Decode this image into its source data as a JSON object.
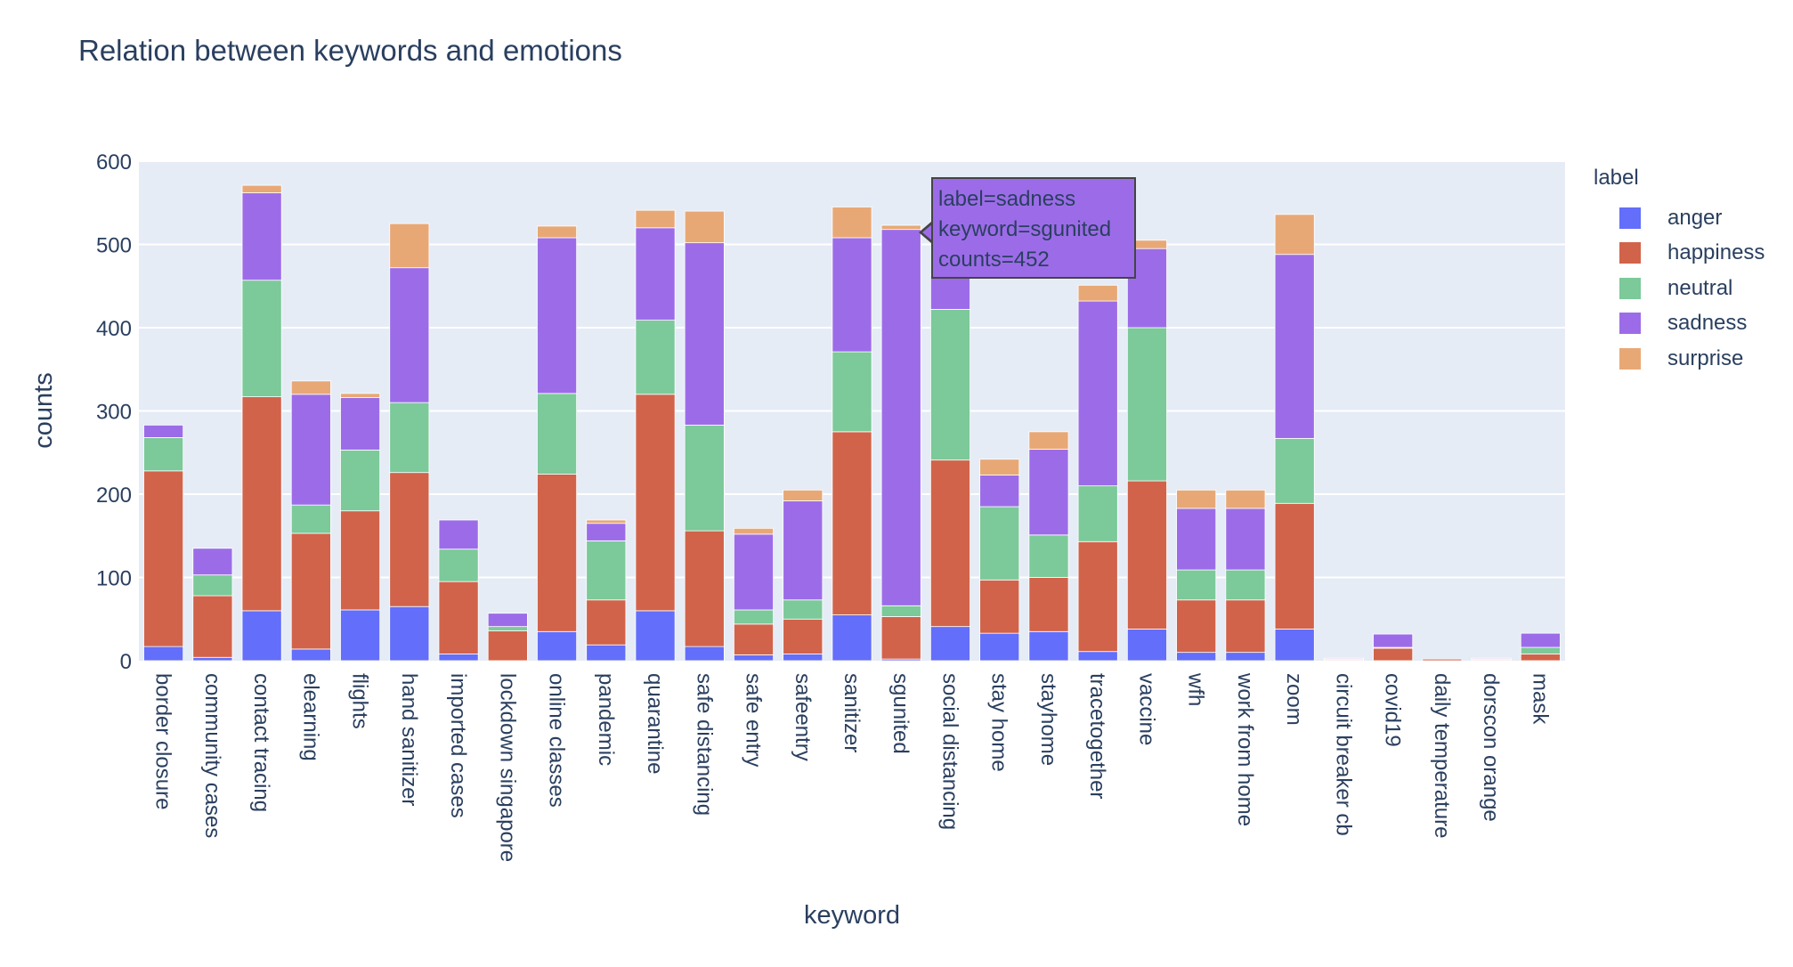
{
  "chart_data": {
    "type": "bar",
    "barmode": "stack",
    "title": "Relation between keywords and emotions",
    "xlabel": "keyword",
    "ylabel": "counts",
    "ylim": [
      0,
      600
    ],
    "yticks": [
      0,
      100,
      200,
      300,
      400,
      500,
      600
    ],
    "grid": true,
    "legend_title": "label",
    "legend_position": "right",
    "categories": [
      "border closure",
      "community cases",
      "contact tracing",
      "elearning",
      "flights",
      "hand sanitizer",
      "imported cases",
      "lockdown singapore",
      "online classes",
      "pandemic",
      "quarantine",
      "safe distancing",
      "safe entry",
      "safeentry",
      "sanitizer",
      "sgunited",
      "social distancing",
      "stay home",
      "stayhome",
      "tracetogether",
      "vaccine",
      "wfh",
      "work from home",
      "zoom",
      "circuit breaker cb",
      "covid19",
      "daily temperature",
      "dorscon orange",
      "mask"
    ],
    "series": [
      {
        "name": "anger",
        "color": "#636efa",
        "values": [
          17,
          4,
          60,
          14,
          61,
          65,
          8,
          0,
          35,
          19,
          60,
          17,
          7,
          8,
          55,
          2,
          41,
          33,
          35,
          11,
          38,
          10,
          10,
          38,
          0,
          0,
          0,
          0,
          0
        ]
      },
      {
        "name": "happiness",
        "color": "#d1634a",
        "values": [
          211,
          74,
          257,
          139,
          119,
          161,
          87,
          36,
          189,
          54,
          260,
          139,
          37,
          42,
          220,
          51,
          200,
          64,
          65,
          132,
          178,
          63,
          63,
          151,
          1,
          15,
          2,
          1,
          8
        ]
      },
      {
        "name": "neutral",
        "color": "#7cc99a",
        "values": [
          40,
          25,
          140,
          34,
          73,
          84,
          39,
          5,
          97,
          71,
          89,
          127,
          17,
          23,
          96,
          13,
          181,
          88,
          51,
          67,
          184,
          36,
          36,
          78,
          1,
          1,
          0,
          1,
          8
        ]
      },
      {
        "name": "sadness",
        "color": "#9c6ce8",
        "values": [
          15,
          32,
          105,
          133,
          63,
          162,
          35,
          16,
          187,
          21,
          111,
          219,
          91,
          119,
          137,
          452,
          41,
          38,
          103,
          222,
          95,
          74,
          74,
          221,
          1,
          16,
          0,
          1,
          17
        ]
      },
      {
        "name": "surprise",
        "color": "#e8a876",
        "values": [
          0,
          0,
          9,
          16,
          5,
          53,
          0,
          0,
          14,
          4,
          21,
          38,
          7,
          13,
          37,
          5,
          0,
          19,
          21,
          19,
          10,
          22,
          22,
          48,
          0,
          0,
          0,
          0,
          0
        ]
      }
    ]
  },
  "tooltip": {
    "line1": "label=sadness",
    "line2": "keyword=sgunited",
    "line3": "counts=452",
    "bg": "#9c6ce8"
  }
}
